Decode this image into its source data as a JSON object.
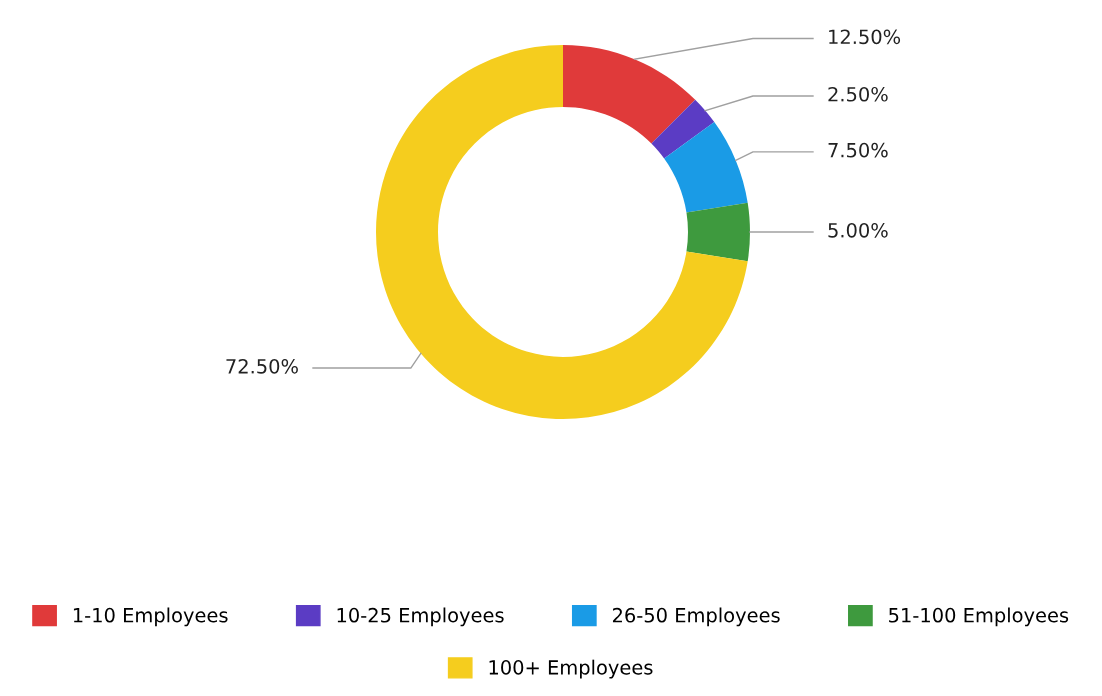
{
  "chart_data": {
    "type": "donut",
    "categories": [
      "1-10 Employees",
      "10-25 Employees",
      "26-50 Employees",
      "51-100 Employees",
      "100+ Employees"
    ],
    "values": [
      12.5,
      2.5,
      7.5,
      5,
      72.5
    ],
    "colors": [
      "#e03a3a",
      "#5b3cc4",
      "#1a9be6",
      "#3e9a3e",
      "#f5cd1e"
    ],
    "value_labels": [
      "12.50%",
      "2.50%",
      "7.50%",
      "5.00%",
      "72.50%"
    ],
    "legend": "bottom"
  }
}
